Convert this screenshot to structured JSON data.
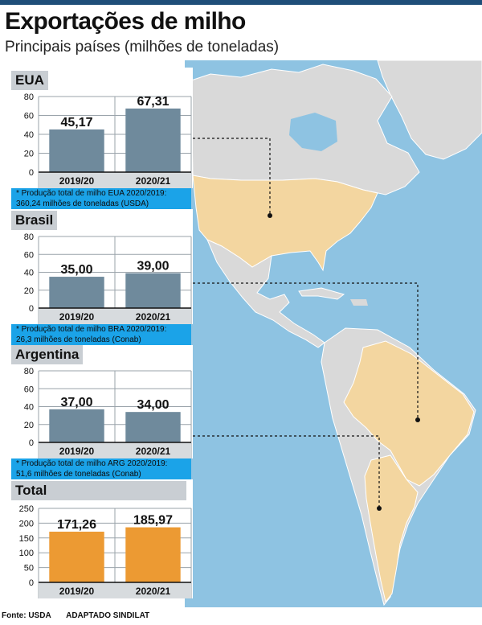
{
  "header": {
    "title": "Exportações de milho",
    "subtitle": "Principais países (milhões de toneladas)"
  },
  "colors": {
    "bar_default": "#6f8a9c",
    "bar_total": "#ec9a33",
    "note_bg": "#1ba3e8",
    "ocean": "#8ec3e2",
    "land": "#d9d9d9",
    "highlight_land": "#f3d6a0"
  },
  "chart_data": [
    {
      "type": "bar",
      "title": "EUA",
      "categories": [
        "2019/20",
        "2020/21"
      ],
      "values": [
        45.17,
        67.31
      ],
      "value_labels": [
        "45,17",
        "67,31"
      ],
      "yticks": [
        "0",
        "20",
        "40",
        "60",
        "80"
      ],
      "ylim": [
        0,
        80
      ],
      "color": "#6f8a9c",
      "note": [
        "* Produção total de milho EUA 2020/2019:",
        "360,24 milhões de toneladas (USDA)"
      ]
    },
    {
      "type": "bar",
      "title": "Brasil",
      "categories": [
        "2019/20",
        "2020/21"
      ],
      "values": [
        35.0,
        39.0
      ],
      "value_labels": [
        "35,00",
        "39,00"
      ],
      "yticks": [
        "0",
        "20",
        "40",
        "60",
        "80"
      ],
      "ylim": [
        0,
        80
      ],
      "color": "#6f8a9c",
      "note": [
        "* Produção total de milho BRA 2020/2019:",
        "26,3 milhões de toneladas (Conab)"
      ]
    },
    {
      "type": "bar",
      "title": "Argentina",
      "categories": [
        "2019/20",
        "2020/21"
      ],
      "values": [
        37.0,
        34.0
      ],
      "value_labels": [
        "37,00",
        "34,00"
      ],
      "yticks": [
        "0",
        "20",
        "40",
        "60",
        "80"
      ],
      "ylim": [
        0,
        80
      ],
      "color": "#6f8a9c",
      "note": [
        "* Produção total de milho ARG 2020/2019:",
        "51,6 milhões de toneladas (Conab)"
      ]
    },
    {
      "type": "bar",
      "title": "Total",
      "categories": [
        "2019/20",
        "2020/21"
      ],
      "values": [
        171.26,
        185.97
      ],
      "value_labels": [
        "171,26",
        "185,97"
      ],
      "yticks": [
        "0",
        "50",
        "100",
        "150",
        "200",
        "250"
      ],
      "ylim": [
        0,
        250
      ],
      "color": "#ec9a33"
    }
  ],
  "footer": {
    "source": "Fonte: USDA",
    "credit": "ADAPTADO SINDILAT"
  }
}
